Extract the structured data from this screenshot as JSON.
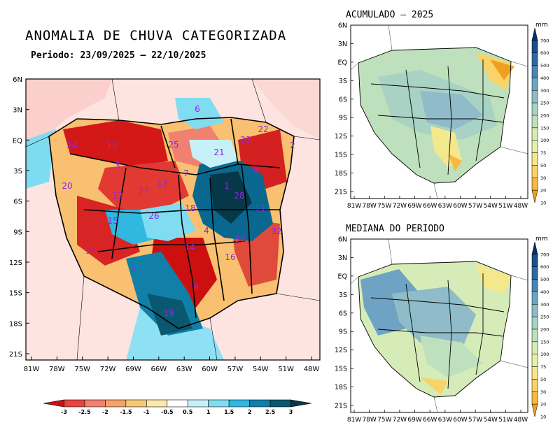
{
  "main_map": {
    "title": "ANOMALIA DE CHUVA CATEGORIZADA",
    "period": "Periodo: 23/09/2025 – 22/10/2025",
    "lat_labels": [
      "6N",
      "3N",
      "EQ",
      "3S",
      "6S",
      "9S",
      "12S",
      "15S",
      "18S",
      "21S"
    ],
    "lon_labels": [
      "81W",
      "78W",
      "75W",
      "72W",
      "69W",
      "66W",
      "63W",
      "60W",
      "57W",
      "54W",
      "51W",
      "48W"
    ],
    "basin_numbers": [
      {
        "n": "6"
      },
      {
        "n": "24"
      },
      {
        "n": "12"
      },
      {
        "n": "25"
      },
      {
        "n": "21"
      },
      {
        "n": "23"
      },
      {
        "n": "22"
      },
      {
        "n": "2"
      },
      {
        "n": "20"
      },
      {
        "n": "3"
      },
      {
        "n": "13"
      },
      {
        "n": "27"
      },
      {
        "n": "17"
      },
      {
        "n": "7"
      },
      {
        "n": "8"
      },
      {
        "n": "1"
      },
      {
        "n": "28"
      },
      {
        "n": "11"
      },
      {
        "n": "18"
      },
      {
        "n": "15"
      },
      {
        "n": "26"
      },
      {
        "n": "4"
      },
      {
        "n": "32"
      },
      {
        "n": "30"
      },
      {
        "n": "31"
      },
      {
        "n": "14"
      },
      {
        "n": "16"
      },
      {
        "n": "5"
      },
      {
        "n": "9"
      },
      {
        "n": "19"
      }
    ]
  },
  "colorbar": {
    "labels": [
      "-3",
      "-2.5",
      "-2",
      "-1.5",
      "-1",
      "-0.5",
      "0.5",
      "1",
      "1.5",
      "2",
      "2.5",
      "3"
    ],
    "colors": [
      "#cc1010",
      "#e8443c",
      "#f08070",
      "#f4a468",
      "#f8c878",
      "#fbe8b0",
      "#ffffff",
      "#c8f0f8",
      "#80dcf0",
      "#30b8e0",
      "#1080a8",
      "#0a5870",
      "#063848"
    ]
  },
  "acumulado": {
    "title": "ACUMULADO – 2025",
    "unit": "mm"
  },
  "mediana": {
    "title": "MEDIANA DO PERIODO",
    "unit": "mm"
  },
  "small_lat_labels": [
    "6N",
    "3N",
    "EQ",
    "3S",
    "6S",
    "9S",
    "12S",
    "15S",
    "18S",
    "21S"
  ],
  "small_lon_labels": [
    "81W",
    "78W",
    "75W",
    "72W",
    "69W",
    "66W",
    "63W",
    "60W",
    "57W",
    "54W",
    "51W",
    "48W"
  ],
  "mm_scale": {
    "labels": [
      "700",
      "600",
      "500",
      "400",
      "300",
      "250",
      "200",
      "150",
      "100",
      "75",
      "50",
      "30",
      "20",
      "10"
    ],
    "colors": [
      "#08306b",
      "#1b4f8a",
      "#2e6aa0",
      "#4886b4",
      "#6fa3c4",
      "#8fbcc8",
      "#a8d2c4",
      "#bfe0bc",
      "#d6ecb8",
      "#e8f0a8",
      "#f4e88c",
      "#f8d468",
      "#f8b840",
      "#f0a020"
    ]
  }
}
